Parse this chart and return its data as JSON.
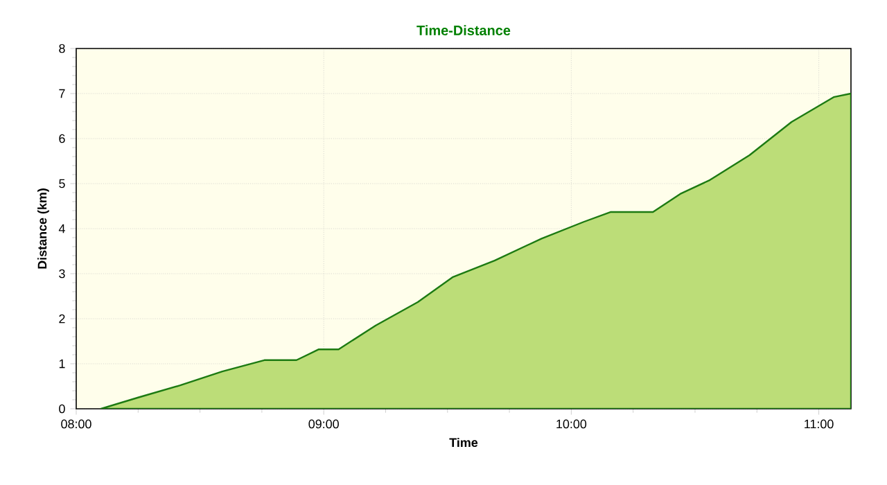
{
  "chart_data": {
    "type": "area",
    "title": "Time-Distance",
    "xlabel": "Time",
    "ylabel": "Distance (km)",
    "x": [
      8.1,
      8.25,
      8.42,
      8.59,
      8.76,
      8.89,
      8.98,
      9.06,
      9.21,
      9.38,
      9.52,
      9.69,
      9.88,
      10.05,
      10.16,
      10.33,
      10.44,
      10.56,
      10.72,
      10.89,
      11.06,
      11.13
    ],
    "series": [
      {
        "color": "#bcdd78",
        "values": [
          0,
          0.25,
          0.52,
          0.83,
          1.08,
          1.08,
          1.32,
          1.32,
          1.85,
          2.37,
          2.92,
          3.29,
          3.78,
          4.15,
          4.37,
          4.37,
          4.77,
          5.08,
          5.63,
          6.37,
          6.92,
          7.0
        ]
      }
    ],
    "xlim": [
      8,
      11.13
    ],
    "ylim": [
      0,
      8
    ],
    "xticks": [
      {
        "value": 8,
        "label": "08:00"
      },
      {
        "value": 9,
        "label": "09:00"
      },
      {
        "value": 10,
        "label": "10:00"
      },
      {
        "value": 11,
        "label": "11:00"
      }
    ],
    "yticks": [
      0,
      1,
      2,
      3,
      4,
      5,
      6,
      7,
      8
    ],
    "grid": true
  }
}
